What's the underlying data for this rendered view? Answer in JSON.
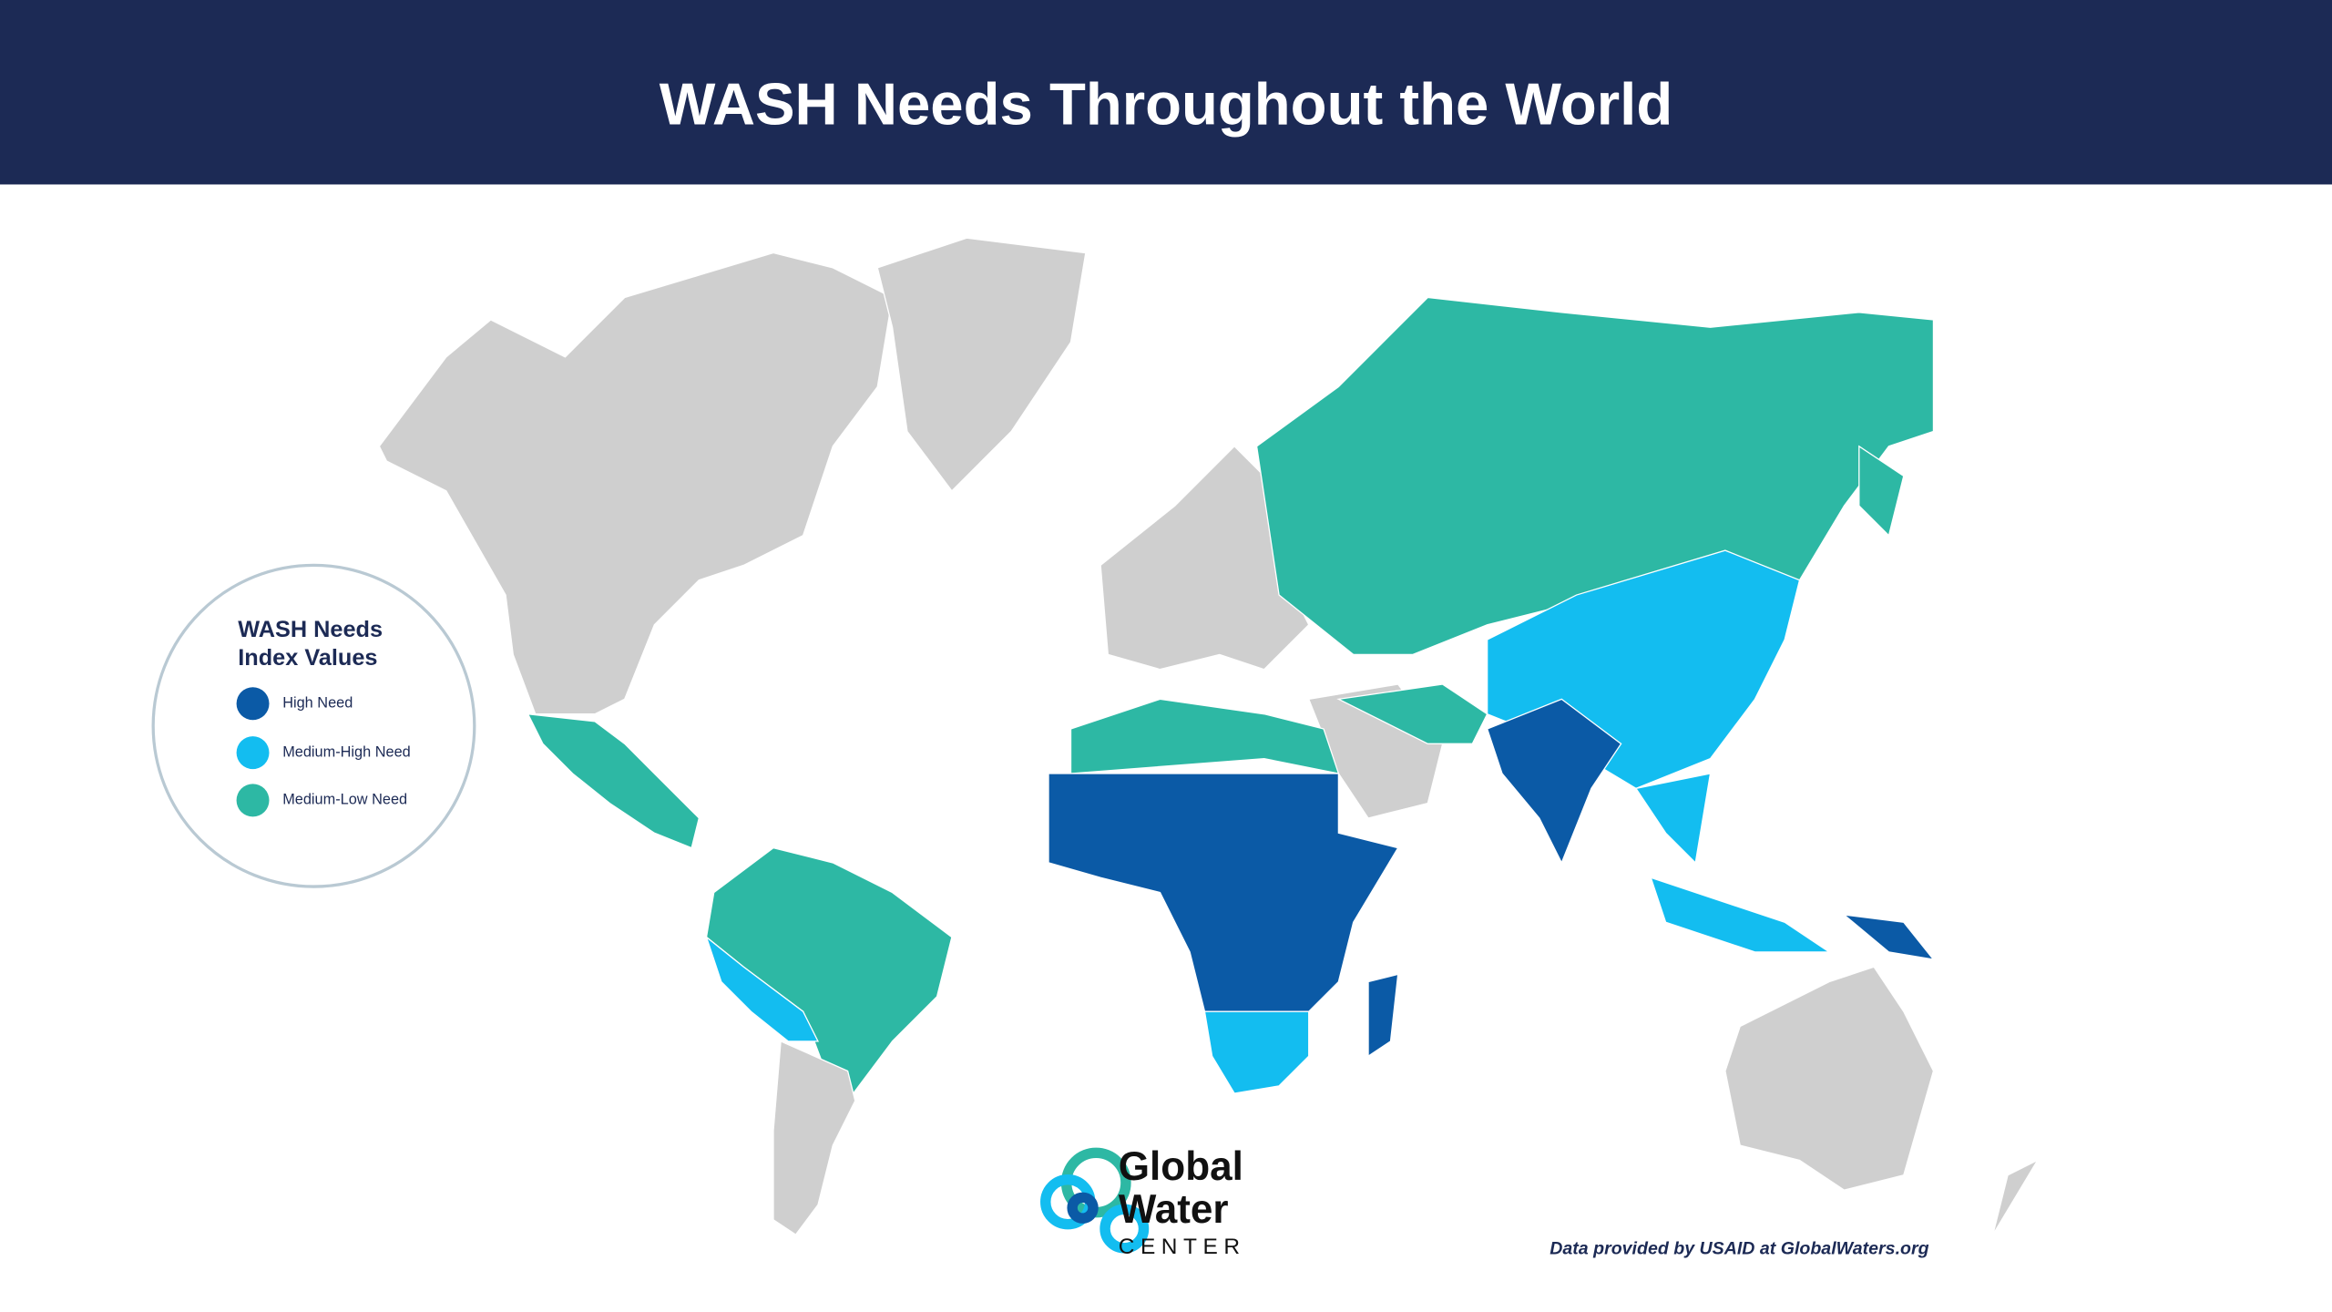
{
  "header": {
    "title": "WASH Needs Throughout the World"
  },
  "legend": {
    "title": [
      "WASH Needs",
      "Index Values"
    ],
    "items": [
      {
        "label": "High Need",
        "color": "#0b5aa6"
      },
      {
        "label": "Medium-High Need",
        "color": "#13bdf0"
      },
      {
        "label": "Medium-Low Need",
        "color": "#2db8a4"
      }
    ]
  },
  "logo": {
    "lines": [
      "Global",
      "Water",
      "CENTER"
    ]
  },
  "credit": "Data provided by USAID at GlobalWaters.org"
}
